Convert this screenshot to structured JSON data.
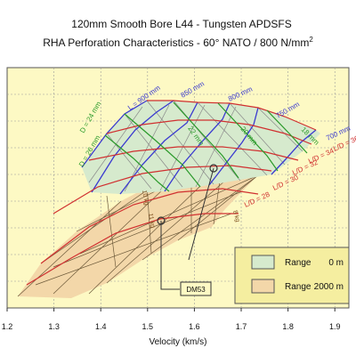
{
  "title_line1": "120mm Smooth Bore L44  -  Tungsten APDSFS",
  "title_line2_main": "RHA Perforation Characteristics   -   60° NATO  /  800 N/mm",
  "title_line2_sup": "2",
  "colors": {
    "plot_bg": "#fdf9c4",
    "range0_fill": "#d6eacd",
    "range2000_fill": "#f3d7a9",
    "length_lines": "#3a3ad0",
    "diameter_lines": "#2a9a2a",
    "ld_lines": "#d03030",
    "mass_lines": "#7a4a1a",
    "grid": "#9a9a9a",
    "legend_bg": "#f5eea0"
  },
  "chart_data": {
    "type": "area",
    "xlabel": "Velocity (km/s)",
    "ylabel": "",
    "xlim": [
      1.2,
      1.93
    ],
    "x_ticks": [
      "1.2",
      "1.3",
      "1.4",
      "1.5",
      "1.6",
      "1.7",
      "1.8",
      "1.9"
    ],
    "x_tick_values": [
      1.2,
      1.3,
      1.4,
      1.5,
      1.6,
      1.7,
      1.8,
      1.9
    ],
    "grid": true,
    "legend_placement": "bottom-right",
    "legend": [
      {
        "label": "Range",
        "value": "0 m",
        "key": "range0_fill"
      },
      {
        "label": "Range",
        "value": "2000 m",
        "key": "range2000_fill"
      }
    ],
    "penetrator_length_labels": [
      "L = 900 mm",
      "850 mm",
      "800 mm",
      "750 mm",
      "700 mm"
    ],
    "diameter_labels": [
      "D = 24 mm",
      "D = 26 mm",
      "22 mm",
      "20 mm",
      "18 mm"
    ],
    "ld_labels": [
      "L/D = 36",
      "L/D = 34",
      "L/D = 32",
      "L/D = 30",
      "L/D = 28"
    ],
    "mass_labels": [
      "10 kg",
      "11 kg",
      "8 kg"
    ],
    "annotation": "DM53"
  }
}
